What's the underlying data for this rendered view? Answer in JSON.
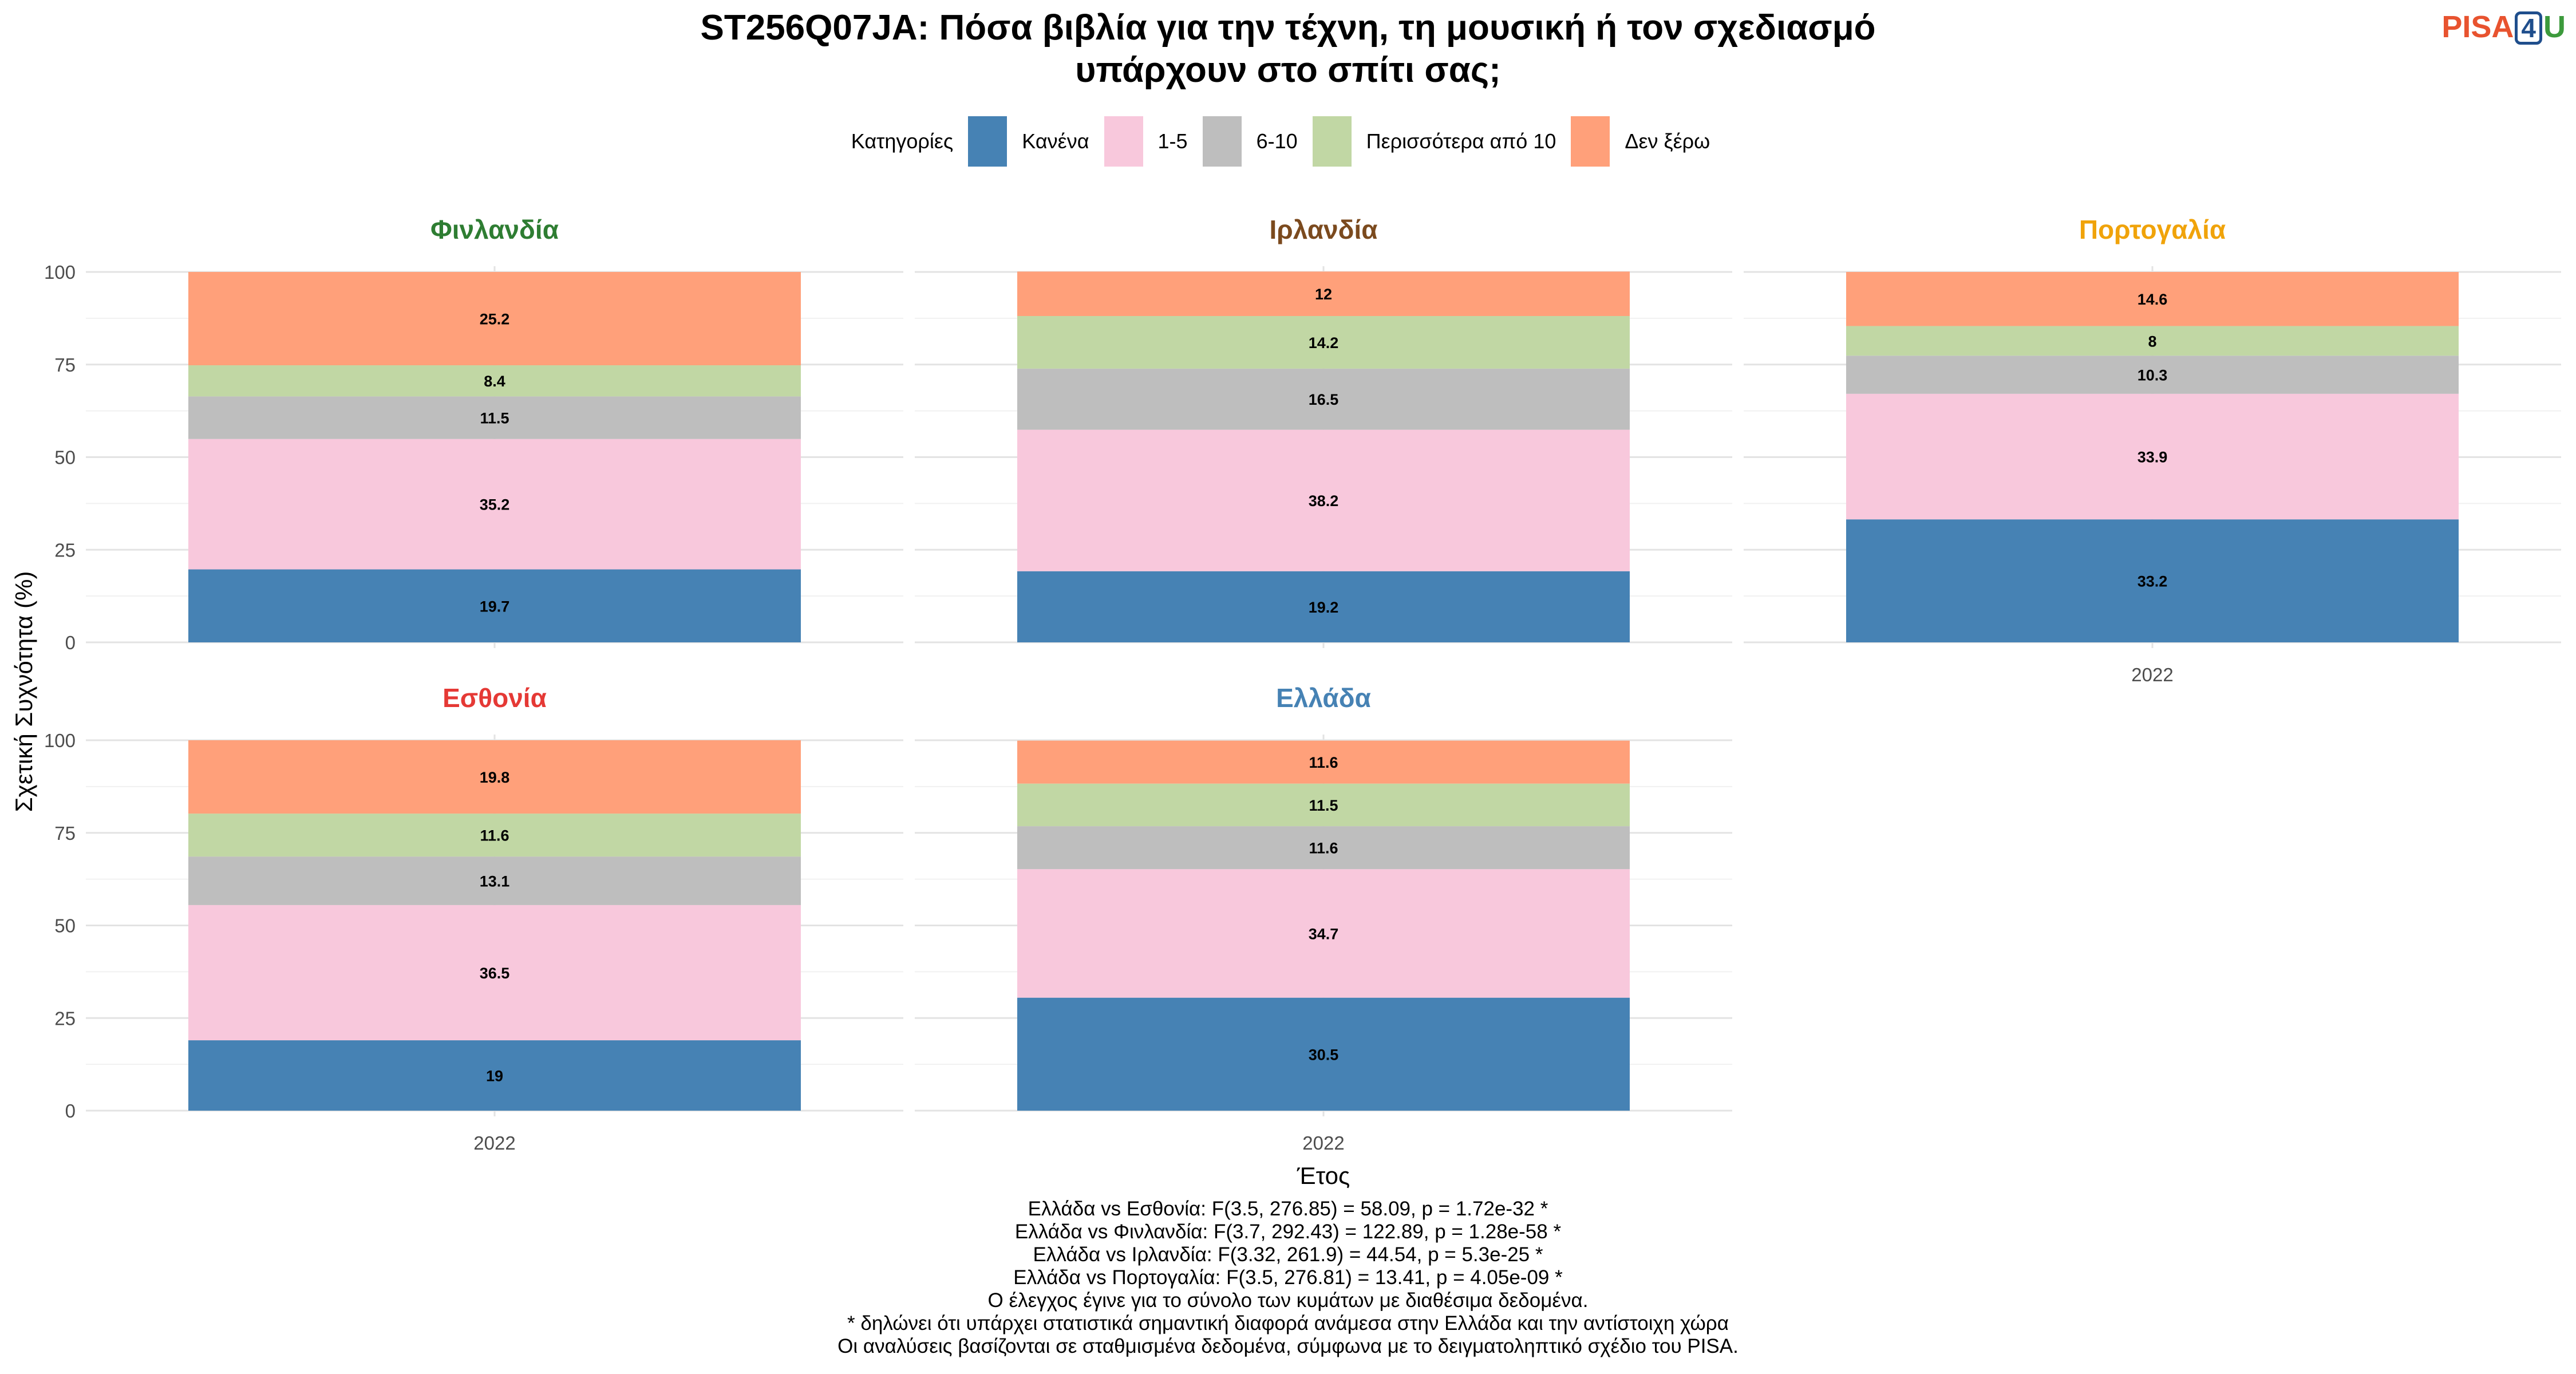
{
  "title_line1": "ST256Q07JA: Πόσα βιβλία για την τέχνη, τη μουσική ή τον σχεδιασμό",
  "title_line2": "υπάρχουν στο σπίτι σας;",
  "logo": {
    "text_a": "PISA",
    "text_b": "4",
    "text_c": "U",
    "colors": [
      "#e8532f",
      "#1f4e8c",
      "#3c9a3c"
    ]
  },
  "legend": {
    "title": "Κατηγορίες",
    "items": [
      {
        "label": "Κανένα",
        "color": "#4682b4"
      },
      {
        "label": "1-5",
        "color": "#f8c8dc"
      },
      {
        "label": "6-10",
        "color": "#bebebe"
      },
      {
        "label": "Περισσότερα από 10",
        "color": "#c1d7a4"
      },
      {
        "label": "Δεν ξέρω",
        "color": "#ffa07a"
      }
    ]
  },
  "chart_data": {
    "type": "bar",
    "stacked": true,
    "xlabel": "Έτος",
    "ylabel": "Σχετική Συχνότητα (%)",
    "ylim": [
      0,
      100
    ],
    "yticks": [
      0,
      25,
      50,
      75,
      100
    ],
    "grid": true,
    "legend_position": "top",
    "categories": [
      "2022"
    ],
    "series_names": [
      "Κανένα",
      "1-5",
      "6-10",
      "Περισσότερα από 10",
      "Δεν ξέρω"
    ],
    "colors": [
      "#4682b4",
      "#f8c8dc",
      "#bebebe",
      "#c1d7a4",
      "#ffa07a"
    ],
    "panels": [
      {
        "name": "Φινλανδία",
        "title_color": "#2e7d32",
        "x": "2022",
        "values": [
          19.7,
          35.2,
          11.5,
          8.4,
          25.2
        ]
      },
      {
        "name": "Ιρλανδία",
        "title_color": "#7b4a1e",
        "x": "2022",
        "values": [
          19.2,
          38.2,
          16.5,
          14.2,
          12
        ]
      },
      {
        "name": "Πορτογαλία",
        "title_color": "#f0a30a",
        "x": "2022",
        "values": [
          33.2,
          33.9,
          10.3,
          8,
          14.6
        ]
      },
      {
        "name": "Εσθονία",
        "title_color": "#e53935",
        "x": "2022",
        "values": [
          19,
          36.5,
          13.1,
          11.6,
          19.8
        ]
      },
      {
        "name": "Ελλάδα",
        "title_color": "#4682b4",
        "x": "2022",
        "values": [
          30.5,
          34.7,
          11.6,
          11.5,
          11.6
        ]
      }
    ]
  },
  "footnotes": [
    "Ελλάδα vs Εσθονία: F(3.5, 276.85) = 58.09, p = 1.72e-32 *",
    "Ελλάδα vs Φινλανδία: F(3.7, 292.43) = 122.89, p = 1.28e-58 *",
    "Ελλάδα vs Ιρλανδία: F(3.32, 261.9) = 44.54, p = 5.3e-25 *",
    "Ελλάδα vs Πορτογαλία: F(3.5, 276.81) = 13.41, p = 4.05e-09 *",
    "Ο έλεγχος έγινε για το σύνολο των κυμάτων με διαθέσιμα δεδομένα.",
    "* δηλώνει ότι υπάρχει στατιστικά σημαντική διαφορά ανάμεσα στην Ελλάδα και την αντίστοιχη χώρα",
    "Οι αναλύσεις βασίζονται σε σταθμισμένα δεδομένα, σύμφωνα με το δειγματοληπτικό σχέδιο του PISA."
  ]
}
